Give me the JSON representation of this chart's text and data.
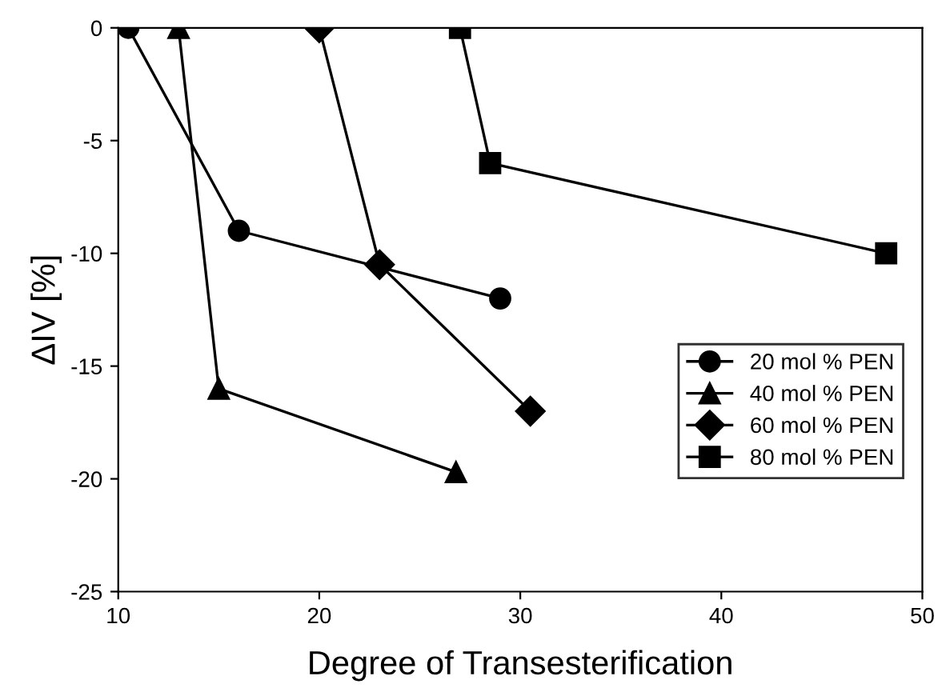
{
  "chart_data": {
    "type": "line",
    "xlabel": "Degree of Transesterification",
    "ylabel": "ΔIV [%]",
    "xlim": [
      10,
      50
    ],
    "xticks": [
      10,
      20,
      30,
      40,
      50
    ],
    "ylim": [
      -25,
      0
    ],
    "yticks": [
      -25,
      -20,
      -15,
      -10,
      -5,
      0
    ],
    "grid": false,
    "legend": "right",
    "line_style": "solid",
    "series": [
      {
        "name": "20 mol % PEN",
        "color": "#000000",
        "marker": "circle",
        "x": [
          10.5,
          16,
          29
        ],
        "values": [
          0,
          -9,
          -12
        ]
      },
      {
        "name": "40 mol % PEN",
        "color": "#000000",
        "marker": "triangle",
        "x": [
          13,
          15,
          26.8
        ],
        "values": [
          0,
          -16,
          -19.7
        ]
      },
      {
        "name": "60 mol % PEN",
        "color": "#000000",
        "marker": "diamond",
        "x": [
          20,
          23,
          30.5
        ],
        "values": [
          0,
          -10.5,
          -17
        ]
      },
      {
        "name": "80 mol % PEN",
        "color": "#000000",
        "marker": "square",
        "x": [
          27,
          28.5,
          48.2
        ],
        "values": [
          0,
          -6,
          -10
        ]
      }
    ]
  }
}
